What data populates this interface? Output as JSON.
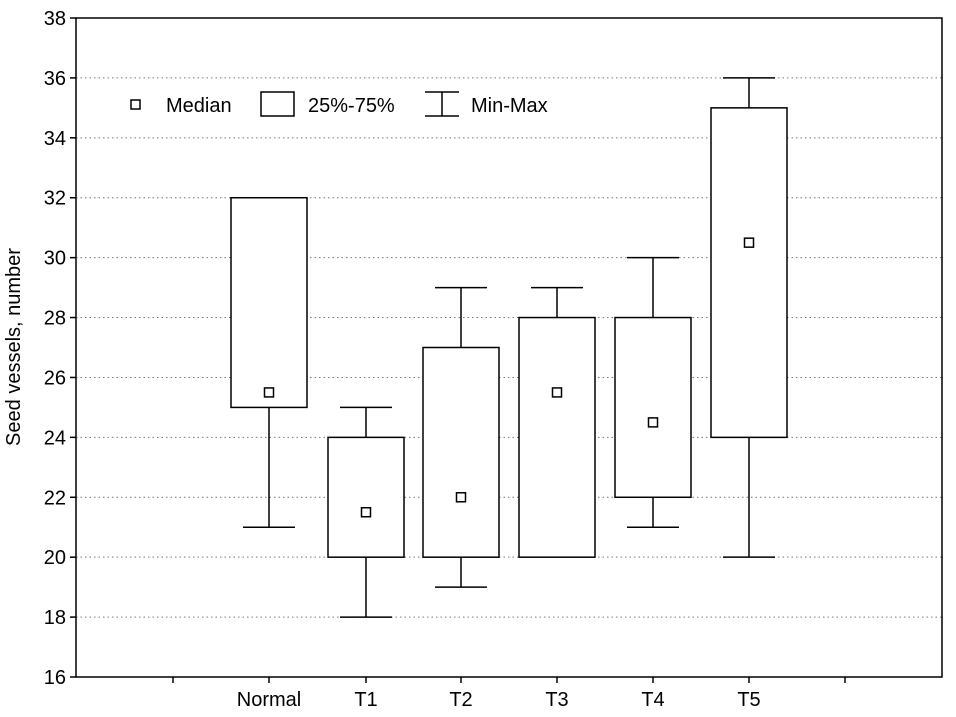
{
  "chart_data": {
    "type": "box",
    "ylabel": "Seed vessels, number",
    "xlabel": "",
    "ylim": [
      16,
      38
    ],
    "yticks": [
      16,
      18,
      20,
      22,
      24,
      26,
      28,
      30,
      32,
      34,
      36,
      38
    ],
    "categories": [
      "Normal",
      "T1",
      "T2",
      "T3",
      "T4",
      "T5"
    ],
    "boxes": [
      {
        "category": "Normal",
        "min": 21,
        "q1": 25,
        "median": 25.5,
        "q3": 32,
        "max": 32
      },
      {
        "category": "T1",
        "min": 18,
        "q1": 20,
        "median": 21.5,
        "q3": 24,
        "max": 25
      },
      {
        "category": "T2",
        "min": 19,
        "q1": 20,
        "median": 22,
        "q3": 27,
        "max": 29
      },
      {
        "category": "T3",
        "min": 20,
        "q1": 20,
        "median": 25.5,
        "q3": 28,
        "max": 29
      },
      {
        "category": "T4",
        "min": 21,
        "q1": 22,
        "median": 24.5,
        "q3": 28,
        "max": 30
      },
      {
        "category": "T5",
        "min": 20,
        "q1": 24,
        "median": 30.5,
        "q3": 35,
        "max": 36
      }
    ],
    "legend": {
      "position": "top-left",
      "items": [
        {
          "symbol": "square-marker",
          "label": "Median"
        },
        {
          "symbol": "box",
          "label": "25%-75%"
        },
        {
          "symbol": "whisker",
          "label": "Min-Max"
        }
      ]
    },
    "grid": "dotted-horizontal"
  }
}
